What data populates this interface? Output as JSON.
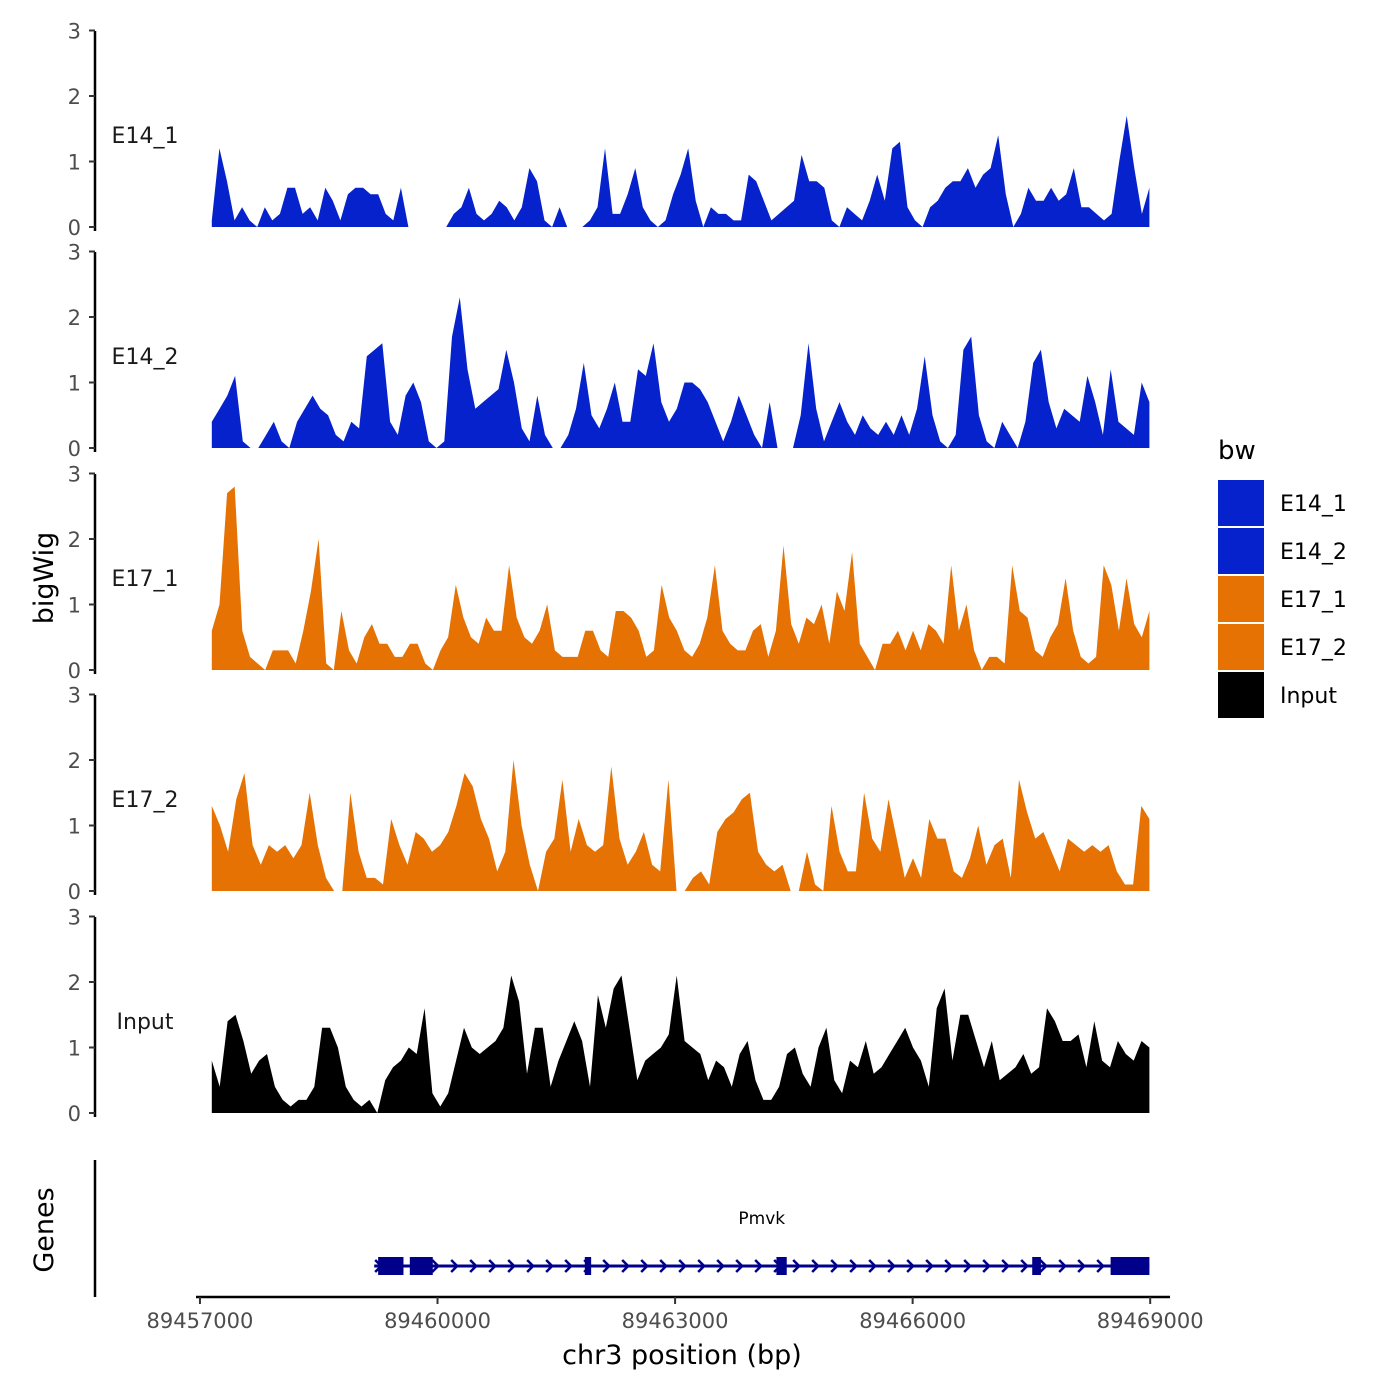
{
  "chart_data": {
    "type": "area",
    "xlabel": "chr3 position (bp)",
    "ylabel": "bigWig",
    "genes_label": "Genes",
    "xlim": [
      89456950,
      89469250
    ],
    "data_xrange": [
      89457150,
      89468990
    ],
    "ylim": [
      0,
      3
    ],
    "yticks": [
      {
        "value": 0,
        "label": "0"
      },
      {
        "value": 1,
        "label": "1"
      },
      {
        "value": 2,
        "label": "2"
      },
      {
        "value": 3,
        "label": "3"
      }
    ],
    "xticks": [
      {
        "value": 89457000,
        "label": "89457000"
      },
      {
        "value": 89460000,
        "label": "89460000"
      },
      {
        "value": 89463000,
        "label": "89463000"
      },
      {
        "value": 89466000,
        "label": "89466000"
      },
      {
        "value": 89469000,
        "label": "89469000"
      }
    ],
    "legend": {
      "title": "bw",
      "entries": [
        {
          "name": "E14_1",
          "color": "#0522CC"
        },
        {
          "name": "E14_2",
          "color": "#0522CC"
        },
        {
          "name": "E17_1",
          "color": "#E57203"
        },
        {
          "name": "E17_2",
          "color": "#E57203"
        },
        {
          "name": "Input",
          "color": "#000000"
        }
      ]
    },
    "series": [
      {
        "name": "E14_1",
        "color": "#0522CC",
        "values": [
          0.1,
          1.2,
          0.7,
          0.1,
          0.3,
          0.1,
          0.0,
          0.3,
          0.1,
          0.2,
          0.6,
          0.6,
          0.2,
          0.3,
          0.1,
          0.6,
          0.4,
          0.1,
          0.5,
          0.6,
          0.6,
          0.5,
          0.5,
          0.2,
          0.1,
          0.6,
          0.0,
          0.0,
          0.0,
          0.0,
          0.0,
          0.0,
          0.2,
          0.3,
          0.6,
          0.2,
          0.1,
          0.2,
          0.4,
          0.3,
          0.1,
          0.3,
          0.9,
          0.7,
          0.1,
          0.0,
          0.3,
          0.0,
          0.0,
          0.0,
          0.1,
          0.3,
          1.2,
          0.2,
          0.2,
          0.5,
          0.9,
          0.3,
          0.1,
          0.0,
          0.1,
          0.5,
          0.8,
          1.2,
          0.4,
          0.0,
          0.3,
          0.2,
          0.2,
          0.1,
          0.1,
          0.8,
          0.7,
          0.4,
          0.1,
          0.2,
          0.3,
          0.4,
          1.1,
          0.7,
          0.7,
          0.6,
          0.1,
          0.0,
          0.3,
          0.2,
          0.1,
          0.4,
          0.8,
          0.4,
          1.2,
          1.3,
          0.3,
          0.1,
          0.0,
          0.3,
          0.4,
          0.6,
          0.7,
          0.7,
          0.9,
          0.6,
          0.8,
          0.9,
          1.4,
          0.5,
          0.0,
          0.2,
          0.6,
          0.4,
          0.4,
          0.6,
          0.4,
          0.5,
          0.9,
          0.3,
          0.3,
          0.2,
          0.1,
          0.2,
          1.0,
          1.7,
          0.9,
          0.2,
          0.6
        ]
      },
      {
        "name": "E14_2",
        "color": "#0522CC",
        "values": [
          0.4,
          0.6,
          0.8,
          1.1,
          0.1,
          0.0,
          0.0,
          0.2,
          0.4,
          0.1,
          0.0,
          0.4,
          0.6,
          0.8,
          0.6,
          0.5,
          0.2,
          0.1,
          0.4,
          0.3,
          1.4,
          1.5,
          1.6,
          0.4,
          0.2,
          0.8,
          1.0,
          0.7,
          0.1,
          0.0,
          0.1,
          1.7,
          2.3,
          1.2,
          0.6,
          0.7,
          0.8,
          0.9,
          1.5,
          1.0,
          0.3,
          0.1,
          0.8,
          0.2,
          0.0,
          0.0,
          0.2,
          0.6,
          1.3,
          0.5,
          0.3,
          0.6,
          1.0,
          0.4,
          0.4,
          1.2,
          1.1,
          1.6,
          0.7,
          0.4,
          0.6,
          1.0,
          1.0,
          0.9,
          0.7,
          0.4,
          0.1,
          0.4,
          0.8,
          0.5,
          0.2,
          0.0,
          0.7,
          0.0,
          0.0,
          0.0,
          0.5,
          1.6,
          0.6,
          0.1,
          0.4,
          0.7,
          0.4,
          0.2,
          0.5,
          0.3,
          0.2,
          0.4,
          0.2,
          0.5,
          0.2,
          0.6,
          1.4,
          0.5,
          0.1,
          0.0,
          0.2,
          1.5,
          1.7,
          0.5,
          0.1,
          0.0,
          0.4,
          0.2,
          0.0,
          0.4,
          1.3,
          1.5,
          0.7,
          0.3,
          0.6,
          0.5,
          0.4,
          1.1,
          0.7,
          0.2,
          1.2,
          0.4,
          0.3,
          0.2,
          1.0,
          0.7
        ]
      },
      {
        "name": "E17_1",
        "color": "#E57203",
        "values": [
          0.6,
          1.0,
          2.7,
          2.8,
          0.6,
          0.2,
          0.1,
          0.0,
          0.3,
          0.3,
          0.3,
          0.1,
          0.6,
          1.2,
          2.0,
          0.1,
          0.0,
          0.9,
          0.3,
          0.1,
          0.5,
          0.7,
          0.4,
          0.4,
          0.2,
          0.2,
          0.4,
          0.4,
          0.1,
          0.0,
          0.3,
          0.5,
          1.3,
          0.8,
          0.5,
          0.4,
          0.8,
          0.6,
          0.6,
          1.6,
          0.8,
          0.5,
          0.4,
          0.6,
          1.0,
          0.3,
          0.2,
          0.2,
          0.2,
          0.6,
          0.6,
          0.3,
          0.2,
          0.9,
          0.9,
          0.8,
          0.6,
          0.2,
          0.3,
          1.3,
          0.8,
          0.6,
          0.3,
          0.2,
          0.4,
          0.8,
          1.6,
          0.6,
          0.4,
          0.3,
          0.3,
          0.6,
          0.7,
          0.2,
          0.6,
          1.9,
          0.7,
          0.4,
          0.8,
          0.7,
          1.0,
          0.4,
          1.2,
          0.9,
          1.8,
          0.4,
          0.2,
          0.0,
          0.4,
          0.4,
          0.6,
          0.3,
          0.6,
          0.3,
          0.7,
          0.6,
          0.4,
          1.6,
          0.6,
          1.0,
          0.3,
          0.0,
          0.2,
          0.2,
          0.1,
          1.6,
          0.9,
          0.8,
          0.3,
          0.2,
          0.5,
          0.7,
          1.4,
          0.6,
          0.2,
          0.1,
          0.2,
          1.6,
          1.3,
          0.6,
          1.4,
          0.7,
          0.5,
          0.9
        ]
      },
      {
        "name": "E17_2",
        "color": "#E57203",
        "values": [
          1.3,
          1.0,
          0.6,
          1.4,
          1.8,
          0.7,
          0.4,
          0.7,
          0.6,
          0.7,
          0.5,
          0.7,
          1.5,
          0.7,
          0.2,
          0.0,
          0.0,
          1.5,
          0.6,
          0.2,
          0.2,
          0.1,
          1.1,
          0.7,
          0.4,
          0.9,
          0.8,
          0.6,
          0.7,
          0.9,
          1.3,
          1.8,
          1.6,
          1.1,
          0.8,
          0.3,
          0.6,
          2.0,
          1.0,
          0.4,
          0.0,
          0.6,
          0.8,
          1.7,
          0.6,
          1.1,
          0.7,
          0.6,
          0.7,
          1.9,
          0.8,
          0.4,
          0.6,
          0.9,
          0.4,
          0.3,
          1.7,
          0.0,
          0.0,
          0.2,
          0.3,
          0.1,
          0.9,
          1.1,
          1.2,
          1.4,
          1.5,
          0.6,
          0.4,
          0.3,
          0.4,
          0.0,
          0.0,
          0.6,
          0.1,
          0.0,
          1.3,
          0.6,
          0.3,
          0.3,
          1.5,
          0.8,
          0.6,
          1.4,
          0.8,
          0.2,
          0.5,
          0.2,
          1.1,
          0.8,
          0.8,
          0.3,
          0.2,
          0.5,
          1.0,
          0.4,
          0.7,
          0.8,
          0.2,
          1.7,
          1.2,
          0.8,
          0.9,
          0.6,
          0.3,
          0.8,
          0.7,
          0.6,
          0.7,
          0.6,
          0.7,
          0.3,
          0.1,
          0.1,
          1.3,
          1.1
        ]
      },
      {
        "name": "Input",
        "color": "#000000",
        "values": [
          0.8,
          0.4,
          1.4,
          1.5,
          1.1,
          0.6,
          0.8,
          0.9,
          0.4,
          0.2,
          0.1,
          0.2,
          0.2,
          0.4,
          1.3,
          1.3,
          1.0,
          0.4,
          0.2,
          0.1,
          0.2,
          0.0,
          0.5,
          0.7,
          0.8,
          1.0,
          0.9,
          1.6,
          0.3,
          0.1,
          0.3,
          0.8,
          1.3,
          1.0,
          0.9,
          1.0,
          1.1,
          1.3,
          2.1,
          1.7,
          0.6,
          1.3,
          1.3,
          0.4,
          0.8,
          1.1,
          1.4,
          1.1,
          0.4,
          1.8,
          1.3,
          1.9,
          2.1,
          1.3,
          0.5,
          0.8,
          0.9,
          1.0,
          1.2,
          2.1,
          1.1,
          1.0,
          0.9,
          0.5,
          0.8,
          0.7,
          0.4,
          0.9,
          1.1,
          0.5,
          0.2,
          0.2,
          0.4,
          0.9,
          1.0,
          0.6,
          0.4,
          1.0,
          1.3,
          0.5,
          0.3,
          0.8,
          0.7,
          1.1,
          0.6,
          0.7,
          0.9,
          1.1,
          1.3,
          1.0,
          0.8,
          0.4,
          1.6,
          1.9,
          0.8,
          1.5,
          1.5,
          1.1,
          0.7,
          1.1,
          0.5,
          0.6,
          0.7,
          0.9,
          0.6,
          0.7,
          1.6,
          1.4,
          1.1,
          1.1,
          1.2,
          0.7,
          1.4,
          0.8,
          0.7,
          1.1,
          0.9,
          0.8,
          1.1,
          1.0
        ]
      }
    ],
    "gene": {
      "name": "Pmvk",
      "strand": "+",
      "start": 89459200,
      "end": 89468990,
      "exons": [
        {
          "start": 89459250,
          "end": 89459570
        },
        {
          "start": 89459650,
          "end": 89459940
        },
        {
          "start": 89461860,
          "end": 89461940
        },
        {
          "start": 89464280,
          "end": 89464410
        },
        {
          "start": 89467510,
          "end": 89467620
        },
        {
          "start": 89468500,
          "end": 89468990
        }
      ]
    }
  }
}
